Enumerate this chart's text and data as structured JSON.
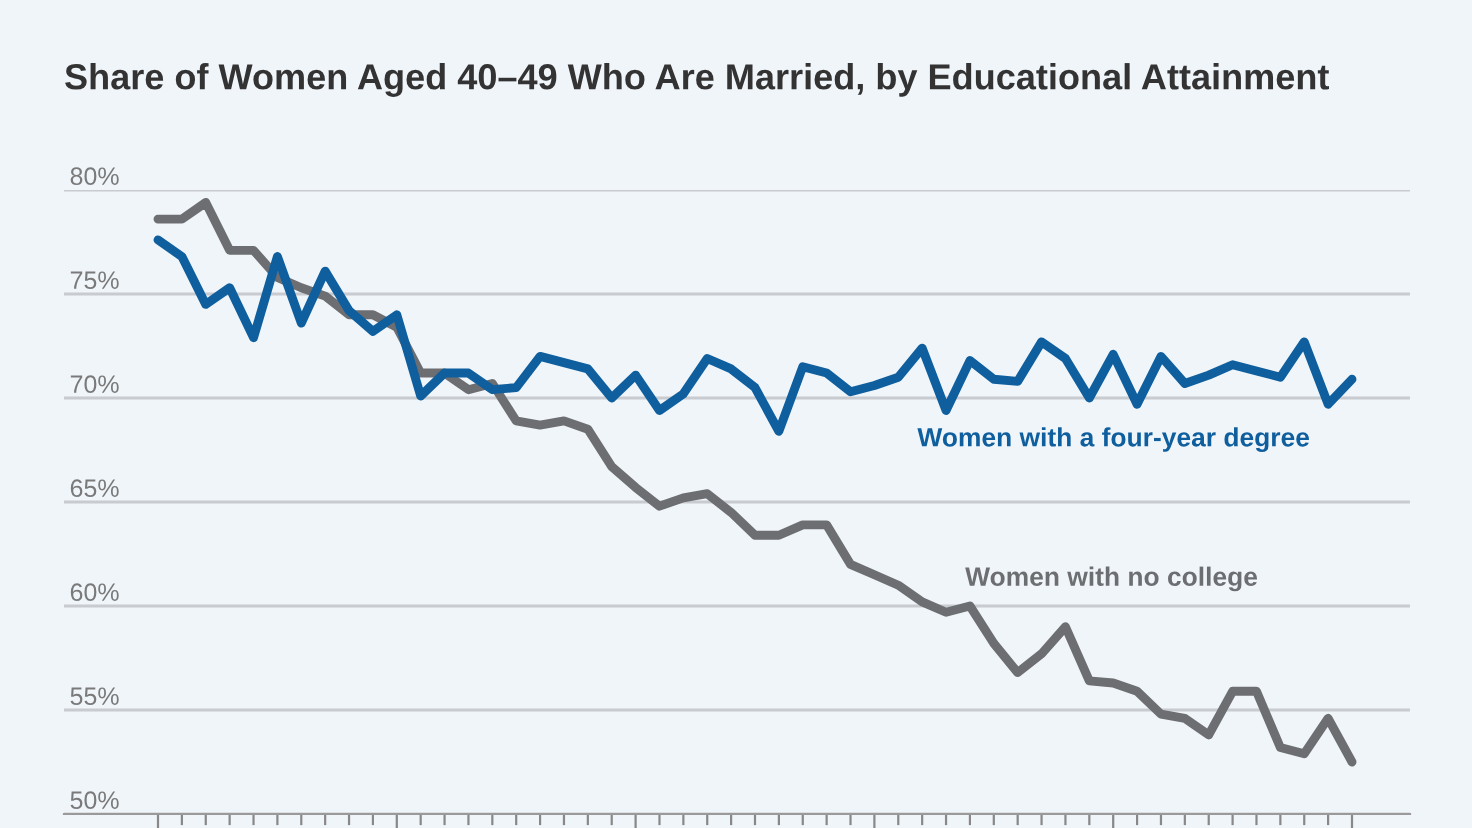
{
  "chart_data": {
    "type": "line",
    "title": "Share of Women Aged 40–49 Who Are Married, by Educational Attainment",
    "categories": [
      null,
      null,
      null,
      null,
      null,
      null,
      null,
      null,
      null,
      null,
      null,
      null,
      null,
      null,
      null,
      null,
      null,
      null,
      null,
      null,
      null,
      null,
      null,
      null,
      null,
      null,
      null,
      null,
      null,
      null,
      null,
      null,
      null,
      null,
      null,
      null,
      null,
      null,
      null,
      null,
      null,
      null,
      null,
      null,
      null,
      null,
      null,
      null,
      null,
      null,
      null
    ],
    "series": [
      {
        "name": "Women with a four-year degree",
        "color": "#0f5f9e",
        "values": [
          77.6,
          76.8,
          74.5,
          75.3,
          72.9,
          76.8,
          73.6,
          76.1,
          74.2,
          73.2,
          74.0,
          70.1,
          71.2,
          71.2,
          70.4,
          70.5,
          72.0,
          71.7,
          71.4,
          70.0,
          71.1,
          69.4,
          70.2,
          71.9,
          71.4,
          70.5,
          68.4,
          71.5,
          71.2,
          70.3,
          70.6,
          71.0,
          72.4,
          69.4,
          71.8,
          70.9,
          70.8,
          72.7,
          71.9,
          70.0,
          72.1,
          69.7,
          72.0,
          70.7,
          71.1,
          71.6,
          71.3,
          71.0,
          72.7,
          69.7,
          70.9
        ]
      },
      {
        "name": "Women with no college",
        "color": "#6d6e71",
        "values": [
          78.6,
          78.6,
          79.4,
          77.1,
          77.1,
          75.8,
          75.3,
          74.9,
          74.0,
          74.0,
          73.4,
          71.2,
          71.2,
          70.4,
          70.7,
          68.9,
          68.7,
          68.9,
          68.5,
          66.7,
          65.7,
          64.8,
          65.2,
          65.4,
          64.5,
          63.4,
          63.4,
          63.9,
          63.9,
          62.0,
          61.5,
          61.0,
          60.2,
          59.7,
          60.0,
          58.2,
          56.8,
          57.7,
          59.0,
          56.4,
          56.3,
          55.9,
          54.8,
          54.6,
          53.8,
          55.9,
          55.9,
          53.2,
          52.9,
          54.6,
          52.5
        ]
      }
    ],
    "ylim": [
      50,
      80
    ],
    "yticks": [
      {
        "value": 50,
        "label": "50%"
      },
      {
        "value": 55,
        "label": "55%"
      },
      {
        "value": 60,
        "label": "60%"
      },
      {
        "value": 65,
        "label": "65%"
      },
      {
        "value": 70,
        "label": "70%"
      },
      {
        "value": 75,
        "label": "75%"
      },
      {
        "value": 80,
        "label": "80%"
      }
    ],
    "grid": "y",
    "legend": false,
    "tick_labels": "y",
    "marker": "none",
    "line_style": "solid"
  }
}
